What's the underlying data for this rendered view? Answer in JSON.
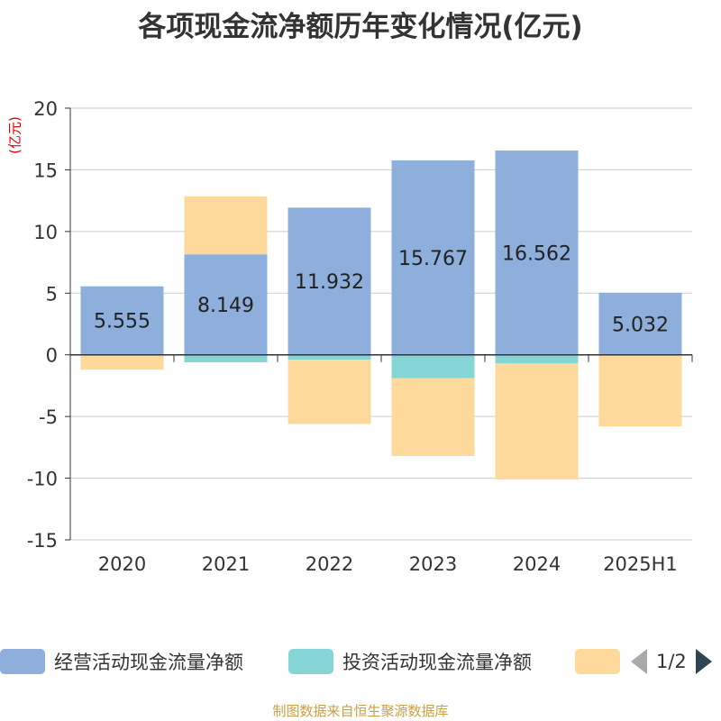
{
  "title": "各项现金流净额历年变化情况(亿元)",
  "unit_label": "(亿元)",
  "source": "制图数据来自恒生聚源数据库",
  "legend": {
    "items": [
      {
        "label": "经营活动现金流量净额",
        "color": "#8eaedc"
      },
      {
        "label": "投资活动现金流量净额",
        "color": "#86d5d6"
      },
      {
        "label": "",
        "color": "#fdd99b"
      }
    ],
    "page_text": "1/2"
  },
  "chart_data": {
    "type": "bar",
    "stacked": true,
    "categories": [
      "2020",
      "2021",
      "2022",
      "2023",
      "2024",
      "2025H1"
    ],
    "ylim": [
      -15,
      20
    ],
    "yticks": [
      "20",
      "15",
      "10",
      "5",
      "0",
      "-5",
      "-10",
      "-15"
    ],
    "grid": true,
    "legend_position": "bottom",
    "series": [
      {
        "name": "经营活动现金流量净额",
        "color": "#8eaedc",
        "values": [
          5.555,
          8.149,
          11.932,
          15.767,
          16.562,
          5.032
        ],
        "data_labels": [
          "5.555",
          "8.149",
          "11.932",
          "15.767",
          "16.562",
          "5.032"
        ]
      },
      {
        "name": "投资活动现金流量净额",
        "color": "#86d5d6",
        "values": [
          0,
          -0.6,
          -0.4,
          -1.9,
          -0.7,
          0
        ]
      },
      {
        "color": "#fdd99b",
        "values": [
          -1.2,
          4.7,
          -5.2,
          -6.3,
          -9.4,
          -5.8
        ]
      }
    ]
  }
}
